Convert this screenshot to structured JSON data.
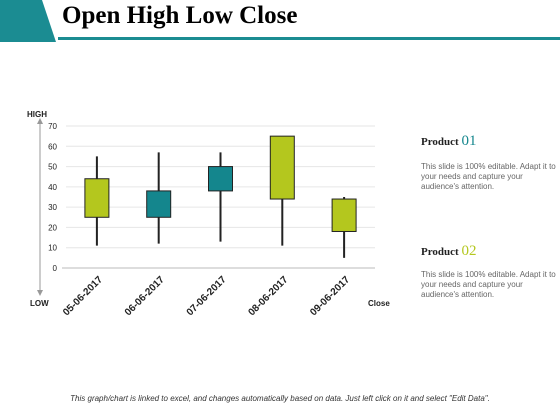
{
  "page": {
    "title": "Open High Low Close",
    "footer": "This graph/chart is linked to excel, and changes automatically based on data.  Just left click on it and select \"Edit Data\"."
  },
  "colors": {
    "accent": "#1b8c92",
    "product1": "#b4c71e",
    "product2": "#14868d",
    "wick": "#222222"
  },
  "side_panel": {
    "items": [
      {
        "label": "Product",
        "number": "01",
        "number_color": "#14868d",
        "text": "This slide is 100% editable. Adapt it to your needs and capture your audience's attention."
      },
      {
        "label": "Product",
        "number": "02",
        "number_color": "#b4c71e",
        "text": "This slide is 100% editable. Adapt it to your needs and capture your audience's attention."
      }
    ]
  },
  "chart_data": {
    "type": "candlestick",
    "categories": [
      "05-06-2017",
      "06-06-2017",
      "07-06-2017",
      "08-06-2017",
      "09-06-2017"
    ],
    "ylim": [
      0,
      70
    ],
    "yticks": [
      "0",
      "10",
      "20",
      "30",
      "40",
      "50",
      "60",
      "70"
    ],
    "axis_labels": {
      "high": "HIGH",
      "low": "LOW",
      "close": "Close"
    },
    "grid": true,
    "candles": [
      {
        "date": "05-06-2017",
        "high": 55,
        "low": 11,
        "box_top": 44,
        "box_bottom": 25,
        "color": "#b4c71e"
      },
      {
        "date": "06-06-2017",
        "high": 57,
        "low": 12,
        "box_top": 38,
        "box_bottom": 25,
        "color": "#14868d"
      },
      {
        "date": "07-06-2017",
        "high": 57,
        "low": 13,
        "box_top": 50,
        "box_bottom": 38,
        "color": "#14868d"
      },
      {
        "date": "08-06-2017",
        "high": 65,
        "low": 11,
        "box_top": 65,
        "box_bottom": 34,
        "color": "#b4c71e"
      },
      {
        "date": "09-06-2017",
        "high": 35,
        "low": 5,
        "box_top": 34,
        "box_bottom": 18,
        "color": "#b4c71e"
      }
    ]
  }
}
